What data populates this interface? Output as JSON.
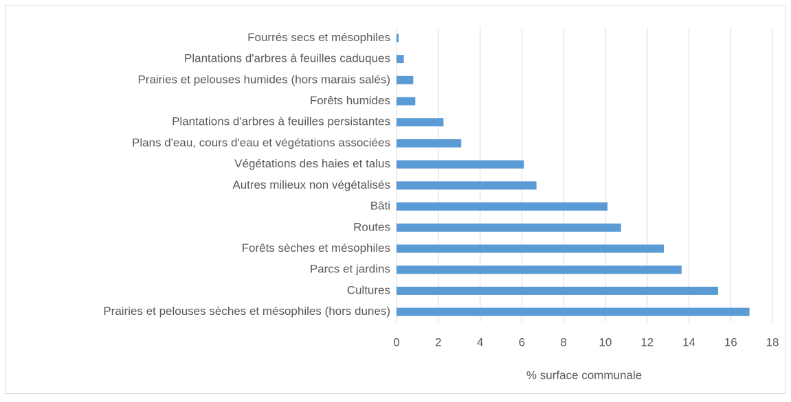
{
  "chart_data": {
    "type": "hbar",
    "categories": [
      "Fourrés secs et mésophiles",
      "Plantations d'arbres à feuilles caduques",
      "Prairies et pelouses humides (hors marais salés)",
      "Forêts humides",
      "Plantations d'arbres à feuilles persistantes",
      "Plans d'eau, cours d'eau et végétations associées",
      "Végétations des haies et talus",
      "Autres milieux non végétalisés",
      "Bâti",
      "Routes",
      "Forêts sèches et mésophiles",
      "Parcs et jardins",
      "Cultures",
      "Prairies et pelouses sèches et mésophiles (hors dunes)"
    ],
    "values": [
      0.1,
      0.35,
      0.8,
      0.9,
      2.25,
      3.1,
      6.1,
      6.7,
      10.1,
      10.75,
      12.8,
      13.65,
      15.4,
      16.9
    ],
    "color": "#5b9bd5",
    "xlabel": "% surface communale",
    "xlim": [
      0,
      18
    ],
    "xticks": [
      0,
      2,
      4,
      6,
      8,
      10,
      12,
      14,
      16,
      18
    ],
    "grid": true
  }
}
